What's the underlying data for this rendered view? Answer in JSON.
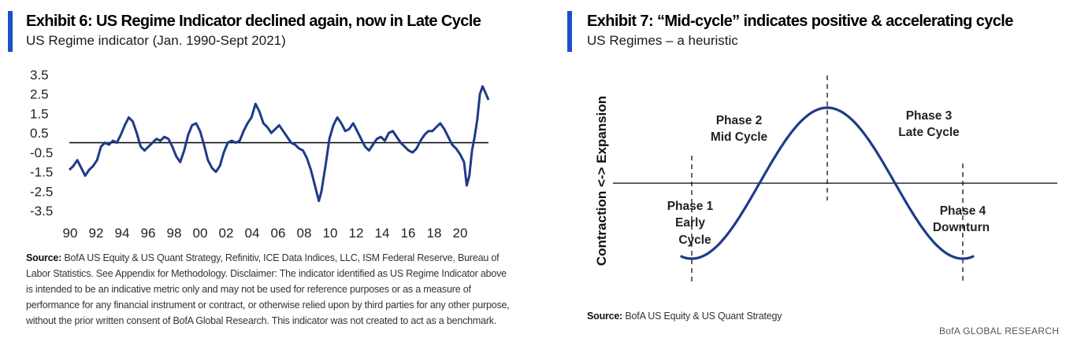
{
  "exhibit6": {
    "title": "Exhibit 6: US Regime Indicator declined again, now in Late Cycle",
    "subtitle": "US Regime indicator (Jan. 1990-Sept 2021)",
    "source_label": "Source:",
    "source_text": "BofA US Equity & US Quant Strategy, Refinitiv, ICE Data Indices, LLC, ISM Federal Reserve, Bureau of Labor Statistics. See Appendix for Methodology. Disclaimer: The indicator identified as US Regime Indicator above is intended to be an indicative metric only and may not be used for reference purposes or as a measure of performance for any financial instrument or contract, or otherwise relied upon by third parties for any other purpose, without the prior written consent of BofA Global Research. This indicator was not created to act as a benchmark."
  },
  "exhibit7": {
    "title": "Exhibit 7: “Mid-cycle” indicates positive & accelerating cycle",
    "subtitle": "US Regimes – a heuristic",
    "ylabel": "Contraction <-> Expansion",
    "phase1_line1": "Phase 1",
    "phase1_line2": "Early",
    "phase1_line3": "Cycle",
    "phase2_line1": "Phase 2",
    "phase2_line2": "Mid Cycle",
    "phase3_line1": "Phase 3",
    "phase3_line2": "Late Cycle",
    "phase4_line1": "Phase 4",
    "phase4_line2": "Downturn",
    "source_label": "Source:",
    "source_text": "BofA US Equity & US Quant Strategy"
  },
  "brand": "BofA GLOBAL RESEARCH",
  "colors": {
    "accent": "#1d4fc7",
    "line": "#1f3a8a",
    "axis": "#000000"
  },
  "chart_data": [
    {
      "type": "line",
      "title": "Exhibit 6: US Regime Indicator declined again, now in Late Cycle",
      "subtitle": "US Regime indicator (Jan. 1990-Sept 2021)",
      "xlabel": "",
      "ylabel": "",
      "x_tick_labels": [
        "90",
        "92",
        "94",
        "96",
        "98",
        "00",
        "02",
        "04",
        "06",
        "08",
        "10",
        "12",
        "14",
        "16",
        "18",
        "20"
      ],
      "y_tick_labels": [
        "3.5",
        "2.5",
        "1.5",
        "0.5",
        "-0.5",
        "-1.5",
        "-2.5",
        "-3.5"
      ],
      "xlim": [
        1990,
        2021.75
      ],
      "ylim": [
        -3.5,
        3.5
      ],
      "reference_line": 0,
      "legend": "none",
      "grid": false,
      "series": [
        {
          "x": [
            1990.0,
            1990.3,
            1990.6,
            1990.9,
            1991.2,
            1991.5,
            1991.8,
            1992.1,
            1992.4,
            1992.7,
            1993.0,
            1993.3,
            1993.6,
            1993.9,
            1994.2,
            1994.5,
            1994.8,
            1995.1,
            1995.4,
            1995.7,
            1996.0,
            1996.3,
            1996.6,
            1996.9,
            1997.2,
            1997.5,
            1997.8,
            1998.1,
            1998.4,
            1998.7,
            1999.0,
            1999.3,
            1999.6,
            1999.9,
            2000.2,
            2000.5,
            2000.8,
            2001.1,
            2001.4,
            2001.7,
            2002.0,
            2002.3,
            2002.6,
            2002.9,
            2003.2,
            2003.5,
            2003.8,
            2004.1,
            2004.4,
            2004.7,
            2005.0,
            2005.3,
            2005.6,
            2005.9,
            2006.2,
            2006.5,
            2006.8,
            2007.1,
            2007.4,
            2007.7,
            2008.0,
            2008.3,
            2008.6,
            2008.9,
            2009.1,
            2009.4,
            2009.7,
            2010.0,
            2010.3,
            2010.6,
            2010.9,
            2011.2,
            2011.5,
            2011.8,
            2012.1,
            2012.4,
            2012.7,
            2013.0,
            2013.3,
            2013.6,
            2013.9,
            2014.2,
            2014.5,
            2014.8,
            2015.1,
            2015.4,
            2015.7,
            2016.0,
            2016.3,
            2016.6,
            2016.9,
            2017.2,
            2017.5,
            2017.8,
            2018.1,
            2018.4,
            2018.7,
            2019.0,
            2019.3,
            2019.6,
            2019.9,
            2020.1,
            2020.3,
            2020.5,
            2020.7,
            2020.9,
            2021.1,
            2021.3,
            2021.5,
            2021.75
          ],
          "values": [
            -1.4,
            -1.2,
            -0.9,
            -1.3,
            -1.7,
            -1.4,
            -1.2,
            -0.9,
            -0.2,
            0.0,
            -0.1,
            0.1,
            0.0,
            0.4,
            0.9,
            1.3,
            1.1,
            0.5,
            -0.2,
            -0.4,
            -0.2,
            0.0,
            0.2,
            0.1,
            0.3,
            0.2,
            -0.2,
            -0.7,
            -1.0,
            -0.4,
            0.4,
            0.9,
            1.0,
            0.6,
            -0.1,
            -0.9,
            -1.3,
            -1.5,
            -1.2,
            -0.5,
            0.0,
            0.1,
            0.0,
            0.1,
            0.6,
            1.0,
            1.3,
            2.0,
            1.6,
            1.0,
            0.8,
            0.5,
            0.7,
            0.9,
            0.6,
            0.3,
            0.0,
            -0.1,
            -0.3,
            -0.4,
            -0.8,
            -1.4,
            -2.2,
            -3.0,
            -2.5,
            -1.2,
            0.2,
            0.9,
            1.3,
            1.0,
            0.6,
            0.7,
            1.0,
            0.6,
            0.2,
            -0.2,
            -0.4,
            -0.1,
            0.2,
            0.3,
            0.1,
            0.5,
            0.6,
            0.3,
            0.0,
            -0.2,
            -0.4,
            -0.5,
            -0.3,
            0.1,
            0.4,
            0.6,
            0.6,
            0.8,
            1.0,
            0.7,
            0.3,
            -0.1,
            -0.3,
            -0.6,
            -1.0,
            -2.2,
            -1.7,
            -0.4,
            0.3,
            1.2,
            2.5,
            2.9,
            2.6,
            2.2
          ]
        }
      ]
    },
    {
      "type": "line",
      "title": "Exhibit 7: “Mid-cycle” indicates positive & accelerating cycle",
      "subtitle": "US Regimes – a heuristic",
      "xlabel": "",
      "ylabel": "Contraction <-> Expansion",
      "reference_line": 0,
      "legend": "none",
      "grid": false,
      "series": [
        {
          "shape": "sine wave",
          "x_phase_degrees": [
            -15,
            375
          ],
          "amplitude": 1
        }
      ],
      "phase_dividers_degrees": [
        0,
        180,
        360
      ]
    }
  ]
}
